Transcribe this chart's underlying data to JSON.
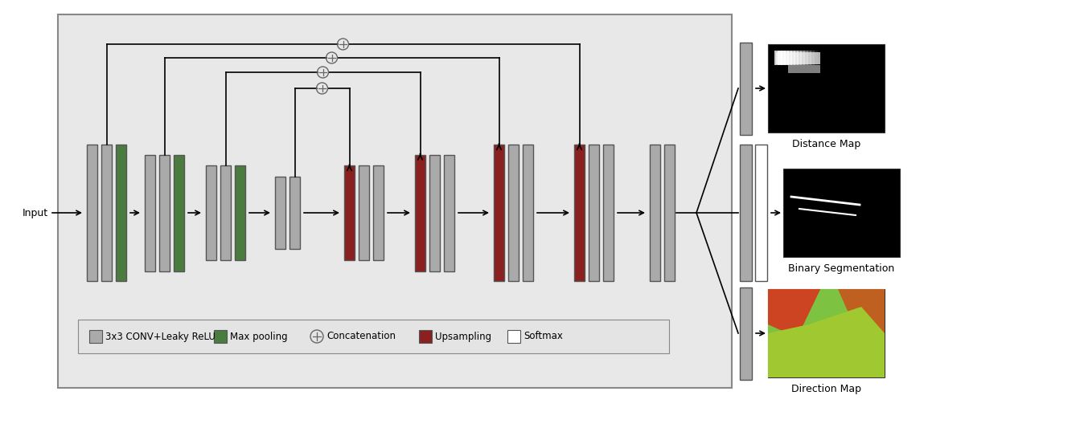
{
  "fig_width": 13.48,
  "fig_height": 5.33,
  "bg_color": "#ffffff",
  "gray_color": "#aaaaaa",
  "green_color": "#4a7c3f",
  "red_color": "#8b2020",
  "white_color": "#ffffff",
  "main_bg": "#e8e8e8",
  "input_label": "Input",
  "output_labels": [
    "Distance Map",
    "Binary Segmentation",
    "Direction Map"
  ],
  "legend_items": [
    "3x3 CONV+Leaky ReLU",
    "Max pooling",
    "Concatenation",
    "Upsampling",
    "Softmax"
  ]
}
